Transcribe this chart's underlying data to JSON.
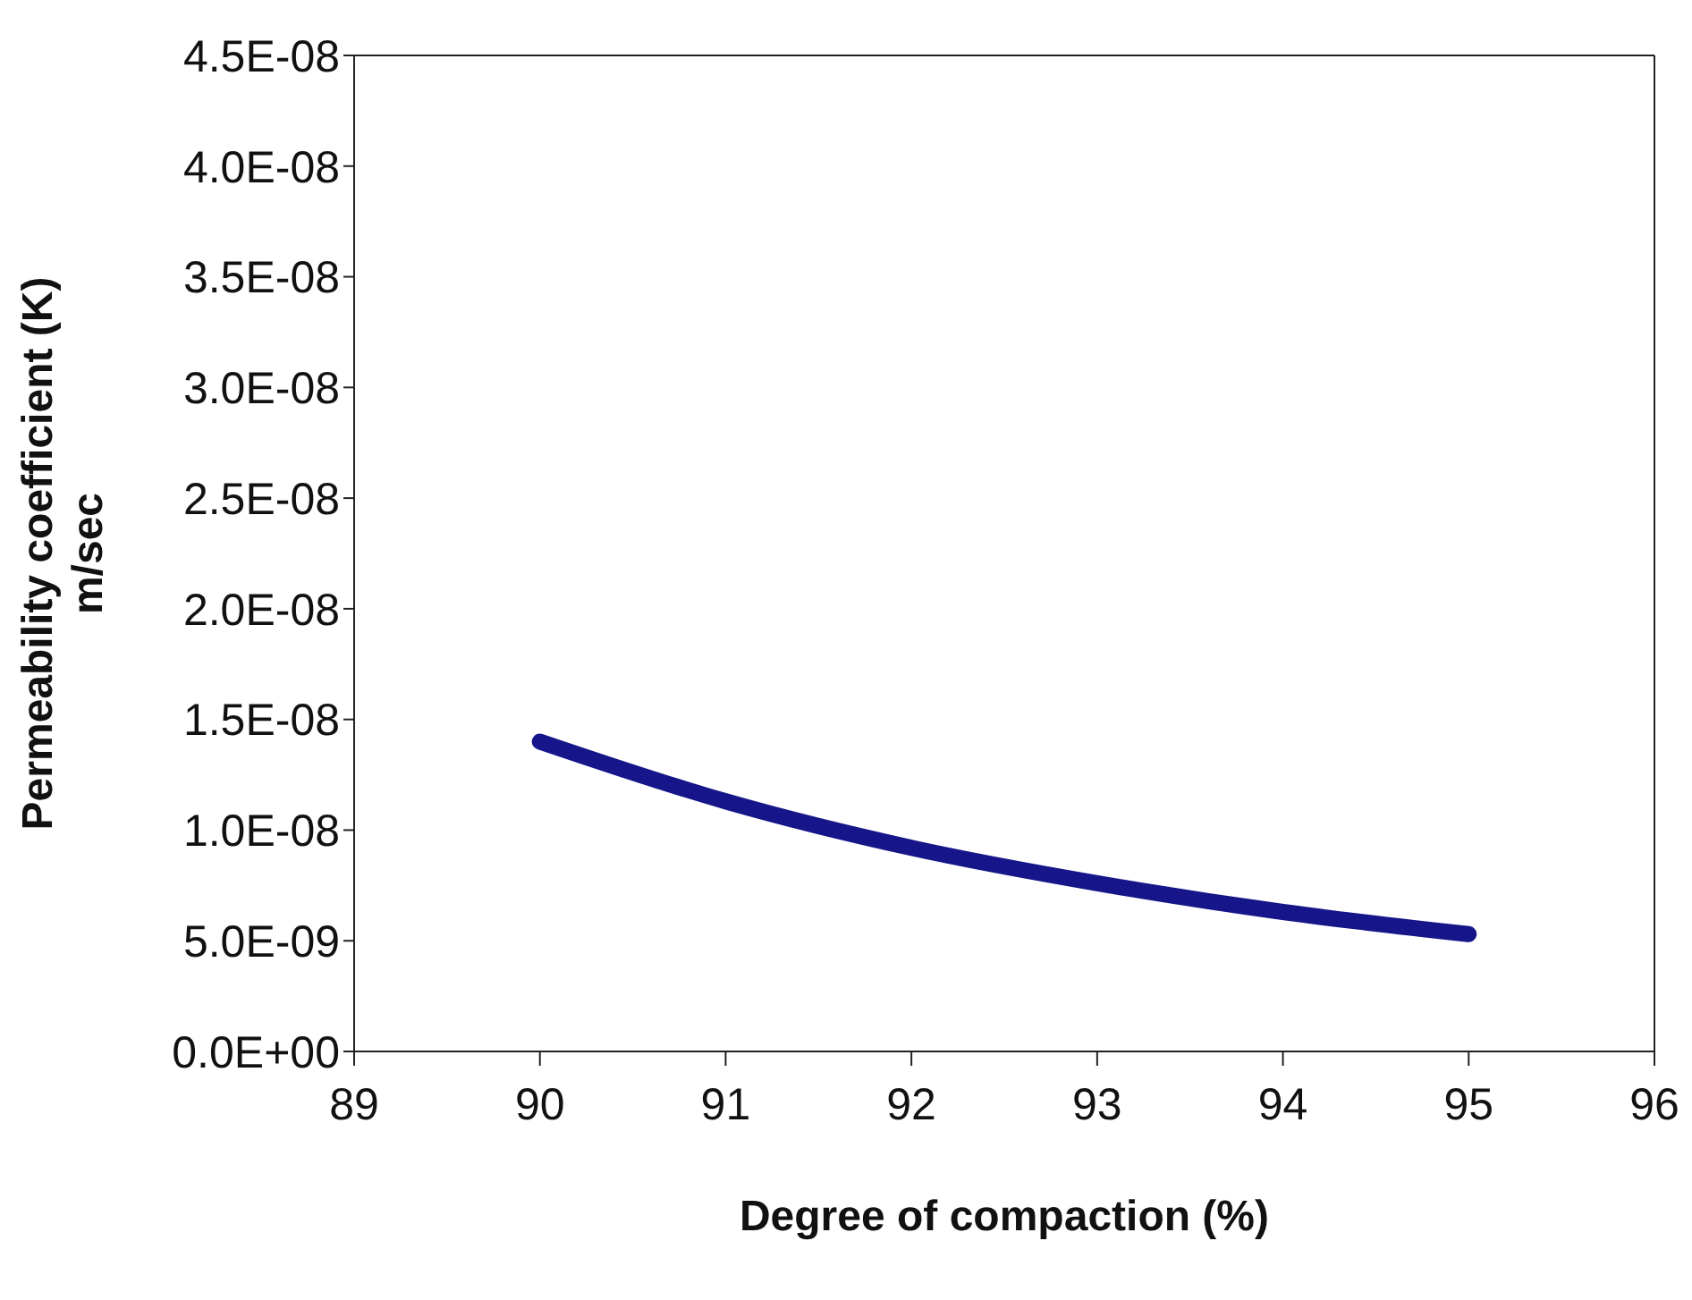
{
  "chart_data": {
    "type": "line",
    "xlabel": "Degree of compaction (%)",
    "ylabel": "Permeability coefficient (K)\nm/sec",
    "x": [
      90,
      91,
      92,
      93,
      94,
      95
    ],
    "series": [
      {
        "color": "#16168a",
        "values": [
          1.4e-08,
          1.13e-08,
          9.2e-09,
          7.6e-09,
          6.3e-09,
          5.3e-09
        ]
      }
    ],
    "xlim": [
      89,
      96
    ],
    "xticks": [
      89,
      90,
      91,
      92,
      93,
      94,
      95,
      96
    ],
    "ylim": [
      0,
      4.5e-08
    ],
    "yticks": [
      {
        "value": 0,
        "label": "0.0E+00"
      },
      {
        "value": 5e-09,
        "label": "5.0E-09"
      },
      {
        "value": 1e-08,
        "label": "1.0E-08"
      },
      {
        "value": 1.5e-08,
        "label": "1.5E-08"
      },
      {
        "value": 2e-08,
        "label": "2.0E-08"
      },
      {
        "value": 2.5e-08,
        "label": "2.5E-08"
      },
      {
        "value": 3e-08,
        "label": "3.0E-08"
      },
      {
        "value": 3.5e-08,
        "label": "3.5E-08"
      },
      {
        "value": 4e-08,
        "label": "4.0E-08"
      },
      {
        "value": 4.5e-08,
        "label": "4.5E-08"
      }
    ],
    "grid": false,
    "legend": false,
    "marker": "none",
    "line_style": "solid"
  }
}
